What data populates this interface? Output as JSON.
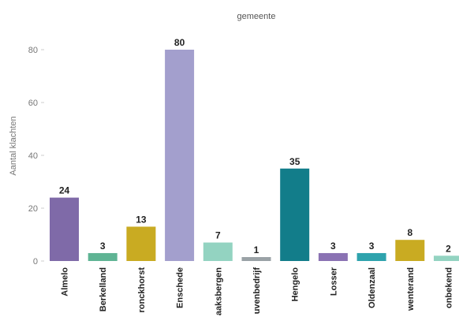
{
  "partial_title": "",
  "chart_data": {
    "type": "bar",
    "legend_title": "gemeente",
    "ylabel": "Aantal klachten",
    "xlabel": "",
    "ylim": [
      0,
      85
    ],
    "yticks": [
      0,
      20,
      40,
      60,
      80
    ],
    "grid": false,
    "categories": [
      "Almelo",
      "Berkelland",
      "Bronckhorst",
      "Enschede",
      "Haaksbergen",
      "Havenbedrijf",
      "Hengelo",
      "Losser",
      "Oldenzaal",
      "Twenterand",
      "Onbekend"
    ],
    "category_labels": [
      "Almelo",
      "Berkelland",
      "ronckhorst",
      "Enschede",
      "aaksbergen",
      "uvenbedrijf",
      "Hengelo",
      "Losser",
      "Oldenzaal",
      "wenterand",
      "onbekend"
    ],
    "values": [
      24,
      3,
      13,
      80,
      7,
      1,
      35,
      3,
      3,
      8,
      2
    ],
    "value_labels": [
      "24",
      "3",
      "13",
      "80",
      "7",
      "1",
      "35",
      "3",
      "3",
      "8",
      "2"
    ],
    "colors": [
      "#7f6aa8",
      "#5fb494",
      "#c9ab22",
      "#a39fcd",
      "#93d3c1",
      "#9aa2a6",
      "#127d8a",
      "#8a72b3",
      "#2ea3ad",
      "#c9ab22",
      "#93d3c1"
    ]
  }
}
